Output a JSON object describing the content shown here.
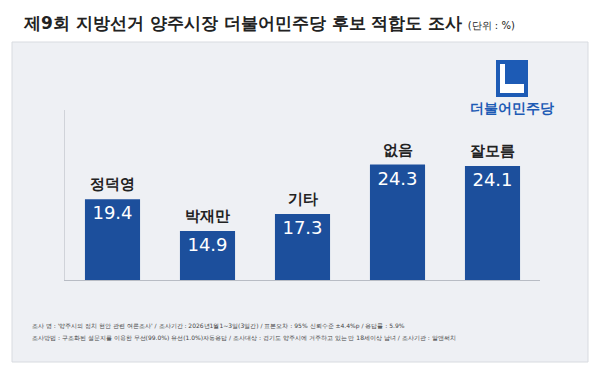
{
  "chart_data": {
    "type": "bar",
    "title": "제9회 지방선거 양주시장 더불어민주당 후보 적합도 조사",
    "unit": "(단위 : %)",
    "logo": "더불어민주당",
    "categories": [
      "정덕영",
      "박재만",
      "기타",
      "없음",
      "잘모름"
    ],
    "values": [
      19.4,
      14.9,
      17.3,
      24.3,
      24.1
    ],
    "color": "#1c4f9c",
    "ylim": [
      8,
      32
    ],
    "yticks": [],
    "grid": false,
    "data_labels": true,
    "tick_labels": false,
    "notes": [
      "조사 명 : '양주시의 정치 현안 관련 여론조사' / 조사기간 : 2026년1월1~3일(3일간) / 표본오차 : 95% 신뢰수준 ±4.4%p / 응답률 : 5.9%",
      "조사방법 : 구조화된 설문지를 이용한 무선(99.0%) 유선(1.0%)자동응답 / 조사대상 : 경기도 양주시에 거주하고 있는 만 18세이상 남녀 / 조사기관 : 알앤써치"
    ]
  }
}
